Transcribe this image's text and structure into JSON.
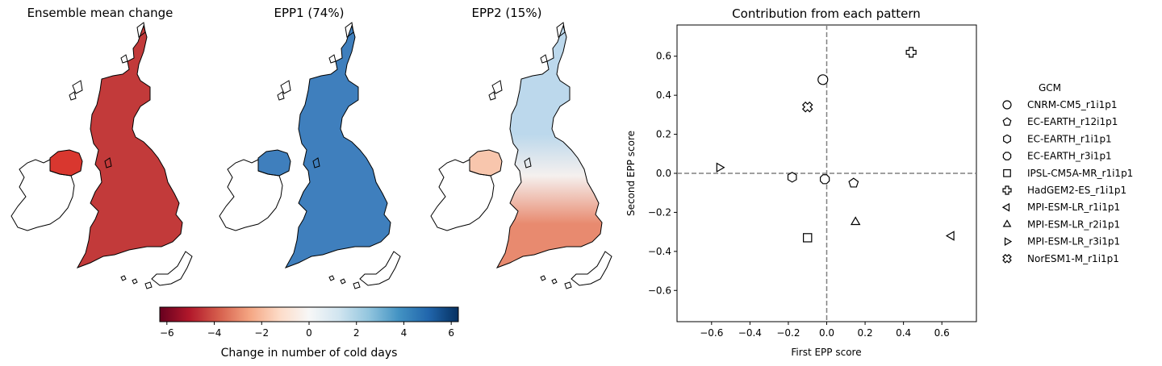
{
  "panels": {
    "map1_title": "Ensemble mean change",
    "map2_title": "EPP1 (74%)",
    "map3_title": "EPP2 (15%)"
  },
  "colorbar": {
    "label": "Change in number of cold days",
    "ticks": [
      "−6",
      "−4",
      "−2",
      "0",
      "2",
      "4",
      "6"
    ],
    "range": [
      -6.3,
      6.3
    ],
    "colormap": "RdBu",
    "colors": [
      "#67001f",
      "#b2182b",
      "#d6604d",
      "#f4a582",
      "#fddbc7",
      "#f7f7f7",
      "#d1e5f0",
      "#92c5de",
      "#4393c3",
      "#2166ac",
      "#053061"
    ]
  },
  "map_colors": {
    "ensemble_mean": "#c23a3a",
    "ensemble_mean_ni": "#d9372f",
    "epp1": "#3f7fbd",
    "epp1_ni": "#3f7fbd",
    "epp2_north": "#bcd8ec",
    "epp2_mid": "#f5f0ee",
    "epp2_south": "#e88a6f",
    "epp2_ni": "#f8c6ad"
  },
  "chart_data": {
    "type": "scatter",
    "title": "Contribution from each pattern",
    "xlabel": "First EPP score",
    "ylabel": "Second EPP score",
    "xlim": [
      -0.78,
      0.78
    ],
    "ylim": [
      -0.76,
      0.76
    ],
    "xticks": [
      -0.6,
      -0.4,
      -0.2,
      0.0,
      0.2,
      0.4,
      0.6
    ],
    "xtick_labels": [
      "−0.6",
      "−0.4",
      "−0.2",
      "0.0",
      "0.2",
      "0.4",
      "0.6"
    ],
    "yticks": [
      0.6,
      0.4,
      0.2,
      0.0,
      -0.2,
      -0.4,
      -0.6
    ],
    "ytick_labels": [
      "0.6",
      "0.4",
      "0.2",
      "0.0",
      "−0.2",
      "−0.4",
      "−0.6"
    ],
    "reference_lines": "dashed grey at x=0 and y=0",
    "legend_title": "GCM",
    "legend_position": "right",
    "series": [
      {
        "name": "CNRM-CM5_r1i1p1",
        "marker": "circle",
        "x": -0.02,
        "y": 0.48
      },
      {
        "name": "EC-EARTH_r12i1p1",
        "marker": "pentagon",
        "x": 0.14,
        "y": -0.05
      },
      {
        "name": "EC-EARTH_r1i1p1",
        "marker": "hexagon",
        "x": -0.18,
        "y": -0.02
      },
      {
        "name": "EC-EARTH_r3i1p1",
        "marker": "octagon",
        "x": -0.01,
        "y": -0.03
      },
      {
        "name": "IPSL-CM5A-MR_r1i1p1",
        "marker": "square",
        "x": -0.1,
        "y": -0.33
      },
      {
        "name": "HadGEM2-ES_r1i1p1",
        "marker": "plus",
        "x": 0.44,
        "y": 0.62
      },
      {
        "name": "MPI-ESM-LR_r1i1p1",
        "marker": "triangle-left",
        "x": 0.65,
        "y": -0.32
      },
      {
        "name": "MPI-ESM-LR_r2i1p1",
        "marker": "triangle-up",
        "x": 0.15,
        "y": -0.25
      },
      {
        "name": "MPI-ESM-LR_r3i1p1",
        "marker": "triangle-right",
        "x": -0.56,
        "y": 0.03
      },
      {
        "name": "NorESM1-M_r1i1p1",
        "marker": "x-filled",
        "x": -0.1,
        "y": 0.34
      }
    ]
  }
}
